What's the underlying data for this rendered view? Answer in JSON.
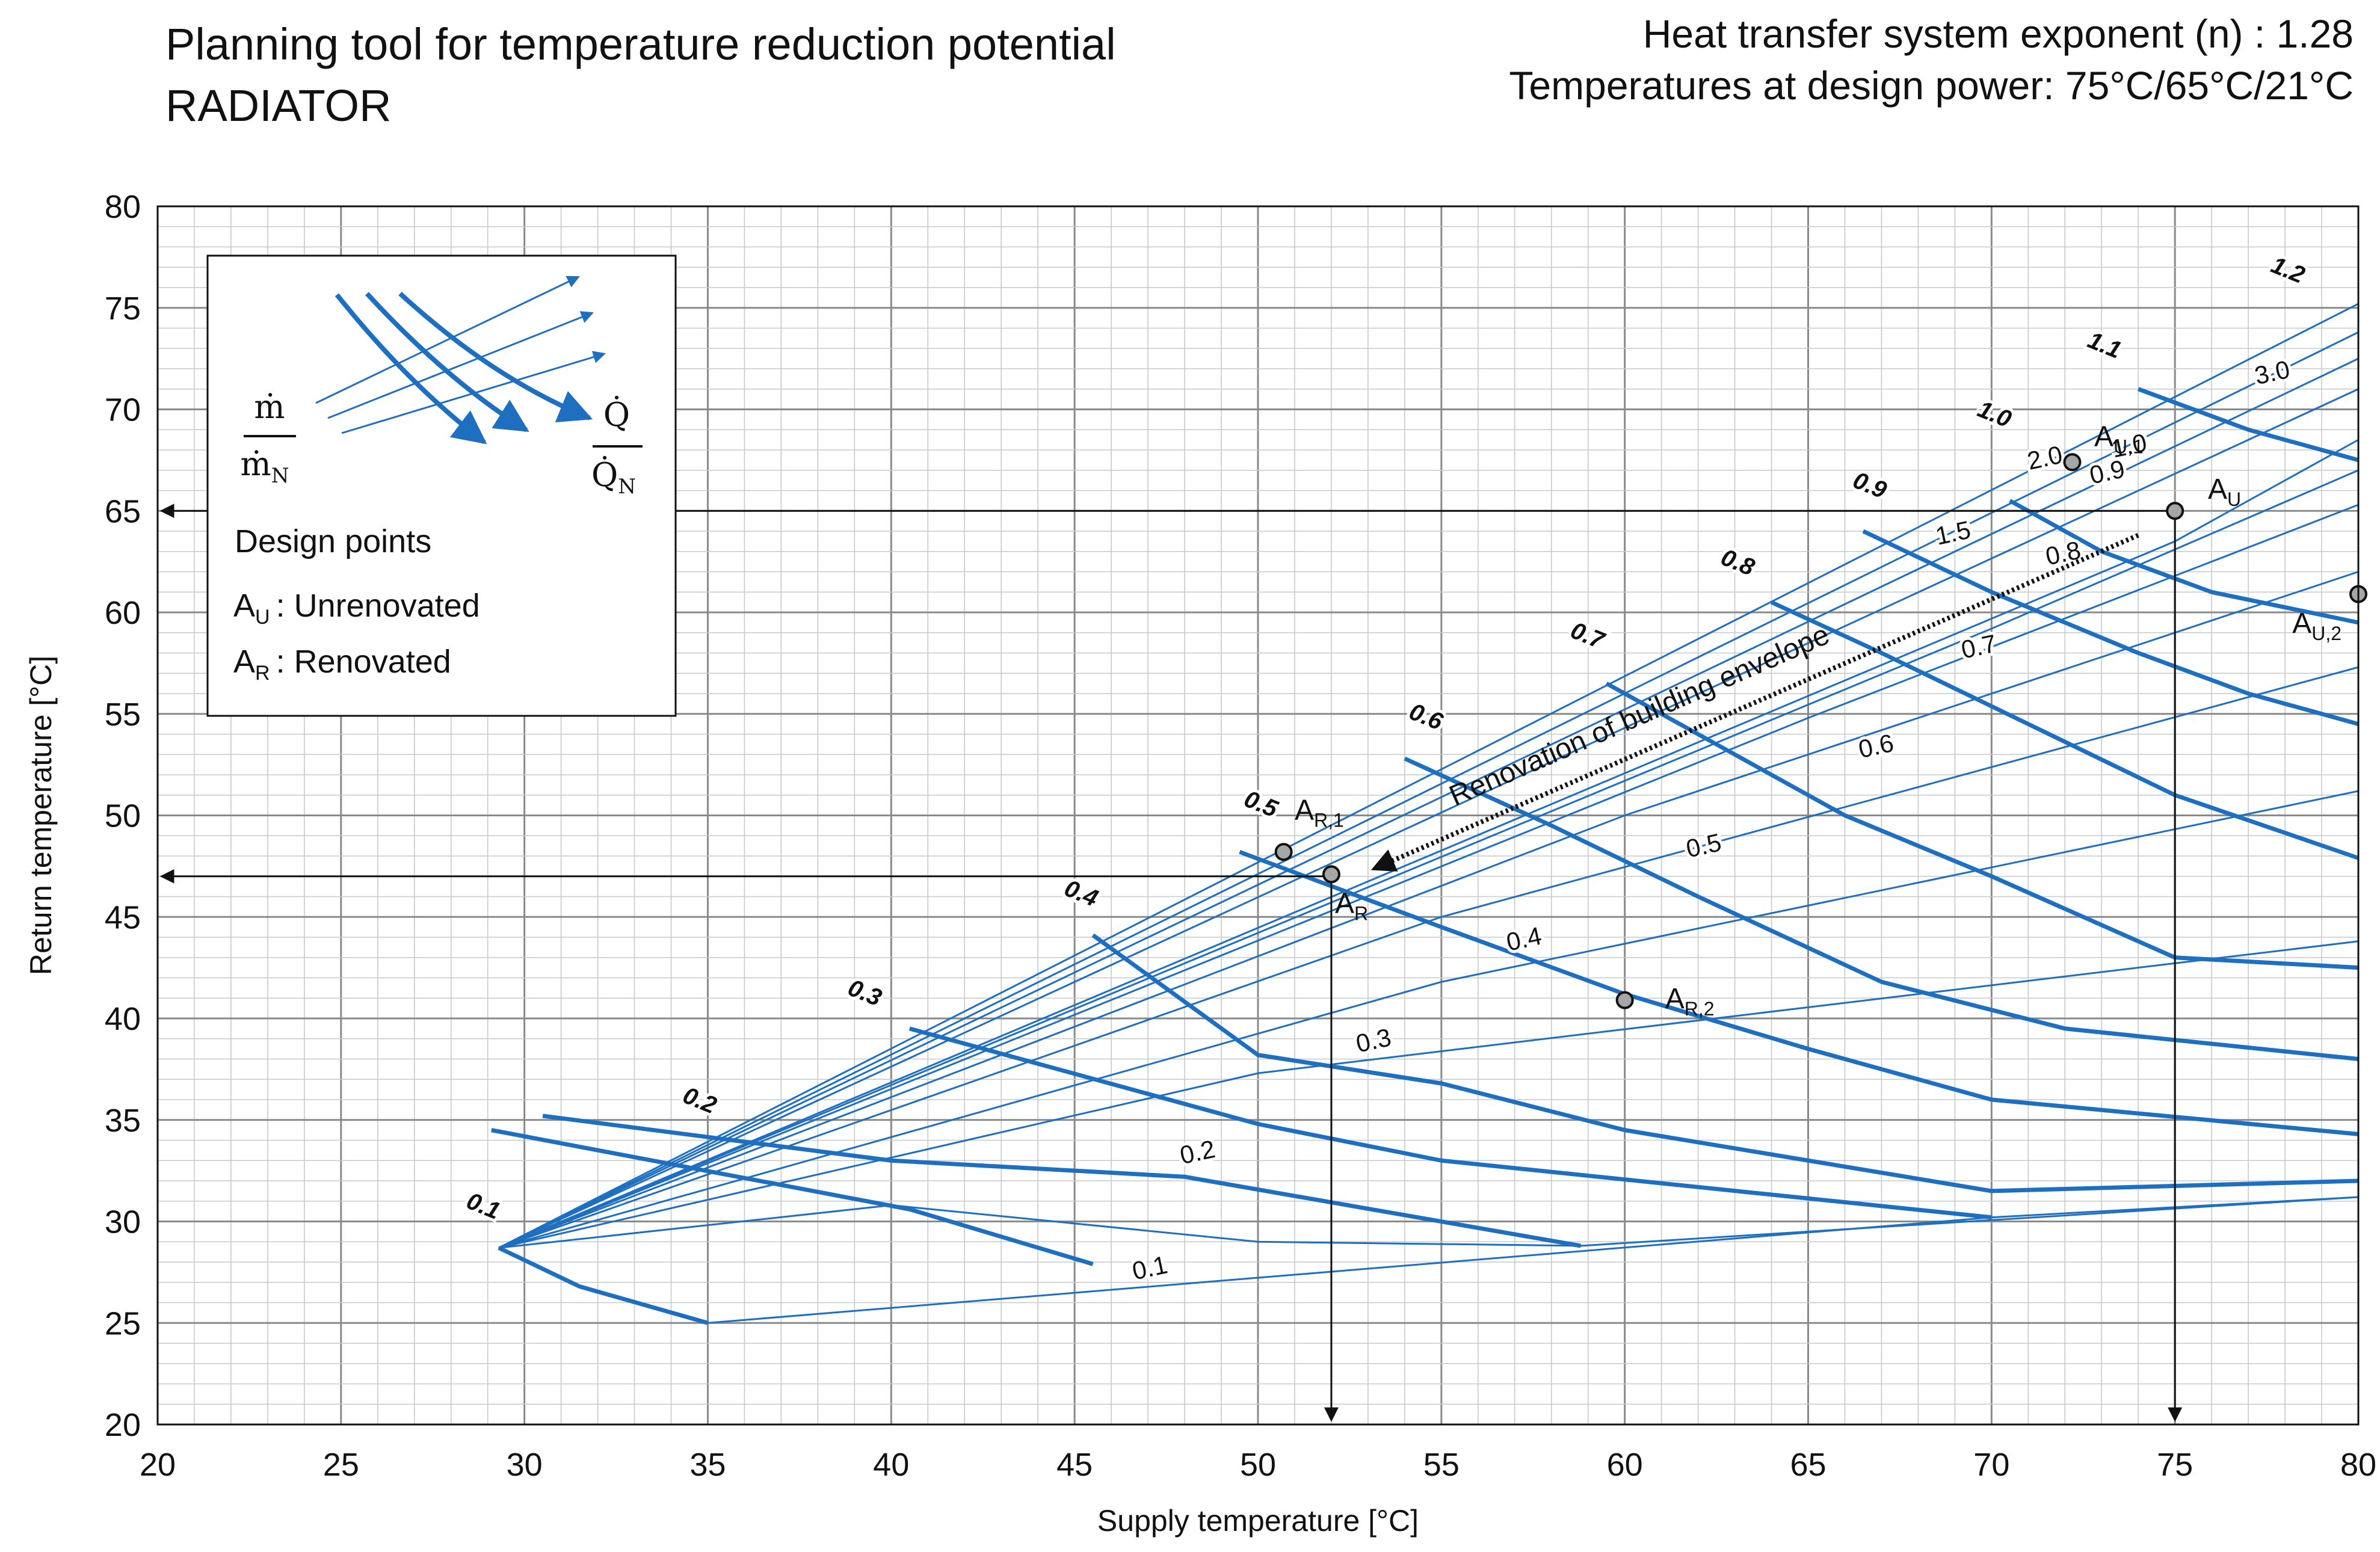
{
  "header": {
    "title_line1": "Planning tool for temperature reduction potential",
    "title_line2": "RADIATOR",
    "param_line1": "Heat transfer system exponent (n) : 1.28",
    "param_line2": "Temperatures at design power: 75°C/65°C/21°C"
  },
  "legend": {
    "mass_flow_numerator": "ṁ",
    "mass_flow_denominator": "ṁ",
    "mass_flow_denominator_sub": "N",
    "heat_numerator": "Q̇",
    "heat_denominator": "Q̇",
    "heat_denominator_sub": "N",
    "design_points_title": "Design points",
    "unrenovated_symbol": "A",
    "unrenovated_sub": "U",
    "unrenovated_text": ": Unrenovated",
    "renovated_symbol": "A",
    "renovated_sub": "R",
    "renovated_text": ": Renovated"
  },
  "colors": {
    "curve": "#1f6fc1",
    "grid_major": "#8a8a8a",
    "grid_minor": "#c9c9c9",
    "ink": "#111111",
    "point_fill": "#a6a6a6"
  },
  "chart_data": {
    "type": "line",
    "title": "Planning tool for temperature reduction potential RADIATOR",
    "xlabel": "Supply temperature [°C]",
    "ylabel": "Return temperature [°C]",
    "xlim": [
      20,
      80
    ],
    "ylim": [
      20,
      80
    ],
    "xticks": [
      20,
      25,
      30,
      35,
      40,
      45,
      50,
      55,
      60,
      65,
      70,
      75,
      80
    ],
    "yticks": [
      20,
      25,
      30,
      35,
      40,
      45,
      50,
      55,
      60,
      65,
      70,
      75,
      80
    ],
    "grid": true,
    "mass_flow_ratio_lines": [
      {
        "label": "0.1",
        "x": [
          29.3,
          31.5,
          35,
          70,
          80
        ],
        "y": [
          28.7,
          26.8,
          25.0,
          30.2,
          31.2
        ]
      },
      {
        "label": "0.2",
        "x": [
          29.3,
          40,
          50,
          58.8,
          80
        ],
        "y": [
          28.7,
          30.8,
          29.0,
          28.8,
          31.2
        ]
      },
      {
        "label": "0.3",
        "x": [
          29.3,
          50,
          80
        ],
        "y": [
          28.7,
          37.3,
          43.8
        ]
      },
      {
        "label": "0.4",
        "x": [
          29.3,
          55,
          80
        ],
        "y": [
          28.7,
          41.8,
          51.2
        ]
      },
      {
        "label": "0.5",
        "x": [
          29.3,
          55,
          80
        ],
        "y": [
          28.7,
          45.0,
          57.3
        ]
      },
      {
        "label": "0.6",
        "x": [
          29.3,
          60,
          80
        ],
        "y": [
          28.7,
          50.0,
          62.0
        ]
      },
      {
        "label": "0.7",
        "x": [
          29.3,
          65,
          80
        ],
        "y": [
          28.7,
          54.8,
          65.3
        ]
      },
      {
        "label": "0.8",
        "x": [
          29.3,
          70,
          80
        ],
        "y": [
          28.7,
          59.2,
          67.0
        ]
      },
      {
        "label": "0.9",
        "x": [
          29.3,
          75,
          80
        ],
        "y": [
          28.7,
          63.5,
          68.5
        ]
      },
      {
        "label": "1.0",
        "x": [
          29.3,
          80
        ],
        "y": [
          28.7,
          71.0
        ]
      },
      {
        "label": "1.5",
        "x": [
          29.3,
          80
        ],
        "y": [
          28.7,
          72.5
        ]
      },
      {
        "label": "2.0",
        "x": [
          29.3,
          80
        ],
        "y": [
          28.7,
          73.8
        ]
      },
      {
        "label": "3.0",
        "x": [
          29.3,
          80
        ],
        "y": [
          28.7,
          75.2
        ]
      }
    ],
    "heat_ratio_curves": [
      {
        "label": "0.1",
        "x": [
          29.3,
          31.5,
          35
        ],
        "y": [
          28.7,
          26.8,
          25.0
        ]
      },
      {
        "label": "0.2",
        "x": [
          29.1,
          40.5,
          45.5
        ],
        "y": [
          34.5,
          30.6,
          27.9
        ]
      },
      {
        "label": "0.3",
        "x": [
          30.5,
          40,
          48,
          58.8
        ],
        "y": [
          35.2,
          33.0,
          32.2,
          28.8
        ]
      },
      {
        "label": "0.4",
        "x": [
          40.5,
          50,
          55,
          70
        ],
        "y": [
          39.5,
          34.8,
          33.0,
          30.2
        ]
      },
      {
        "label": "0.5",
        "x": [
          45.5,
          50,
          55,
          60,
          65,
          70,
          80
        ],
        "y": [
          44.1,
          38.2,
          36.8,
          34.5,
          33.0,
          31.5,
          32.0
        ]
      },
      {
        "label": "0.6",
        "x": [
          49.5,
          55,
          60,
          65,
          70,
          80
        ],
        "y": [
          48.2,
          44.5,
          41.2,
          38.5,
          36.0,
          34.3
        ]
      },
      {
        "label": "0.7",
        "x": [
          54.0,
          58,
          62,
          67,
          72,
          80
        ],
        "y": [
          52.8,
          49.5,
          46.0,
          41.8,
          39.5,
          38.0
        ]
      },
      {
        "label": "0.8",
        "x": [
          59.5,
          62,
          66,
          70,
          75,
          80
        ],
        "y": [
          56.5,
          54.0,
          50.0,
          47.0,
          43.0,
          42.5
        ]
      },
      {
        "label": "0.9",
        "x": [
          64.0,
          67,
          71,
          75,
          80
        ],
        "y": [
          60.5,
          58.0,
          54.5,
          51.0,
          47.9
        ]
      },
      {
        "label": "1.0",
        "x": [
          66.5,
          70,
          74,
          77,
          80
        ],
        "y": [
          64.0,
          61.0,
          58.0,
          56.0,
          54.5
        ]
      },
      {
        "label": "1.1",
        "x": [
          70.5,
          73,
          76,
          80
        ],
        "y": [
          65.5,
          63.0,
          61.0,
          59.5
        ]
      },
      {
        "label": "1.2",
        "x": [
          74.0,
          77,
          80
        ],
        "y": [
          71.0,
          69.0,
          67.5
        ]
      }
    ],
    "mass_flow_labels": [
      {
        "text": "0.1",
        "x": 28.8,
        "y": 30.4
      },
      {
        "text": "0.2",
        "x": 34.7,
        "y": 35.6
      },
      {
        "text": "0.3",
        "x": 39.2,
        "y": 40.9
      },
      {
        "text": "0.4",
        "x": 45.1,
        "y": 45.8
      },
      {
        "text": "0.5",
        "x": 50.0,
        "y": 50.2
      },
      {
        "text": "0.6",
        "x": 54.5,
        "y": 54.5
      },
      {
        "text": "0.7",
        "x": 58.9,
        "y": 58.5
      },
      {
        "text": "0.8",
        "x": 63.0,
        "y": 62.1
      },
      {
        "text": "0.9",
        "x": 66.6,
        "y": 65.9
      },
      {
        "text": "1.0",
        "x": 70.0,
        "y": 69.4
      },
      {
        "text": "1.1",
        "x": 73.0,
        "y": 72.8
      },
      {
        "text": "1.2",
        "x": 78.0,
        "y": 76.5
      }
    ],
    "heat_ratio_labels": [
      {
        "text": "0.1",
        "x": 47.1,
        "y": 27.3
      },
      {
        "text": "0.2",
        "x": 48.4,
        "y": 33.0
      },
      {
        "text": "0.3",
        "x": 53.2,
        "y": 38.5
      },
      {
        "text": "0.4",
        "x": 57.3,
        "y": 43.5
      },
      {
        "text": "0.5",
        "x": 62.2,
        "y": 48.1
      },
      {
        "text": "0.6",
        "x": 66.9,
        "y": 53.0
      },
      {
        "text": "0.7",
        "x": 69.7,
        "y": 57.9
      },
      {
        "text": "0.8",
        "x": 72.0,
        "y": 62.5
      },
      {
        "text": "0.9",
        "x": 73.2,
        "y": 66.5
      },
      {
        "text": "1.0",
        "x": 73.8,
        "y": 67.8
      },
      {
        "text": "1.5",
        "x": 69.0,
        "y": 63.5
      },
      {
        "text": "2.0",
        "x": 71.5,
        "y": 67.2
      },
      {
        "text": "3.0",
        "x": 77.7,
        "y": 71.4
      }
    ],
    "design_points": [
      {
        "id": "A_U",
        "label": "A",
        "sub": "U",
        "x": 75.0,
        "y": 65.0
      },
      {
        "id": "A_U1",
        "label": "A",
        "sub": "U,1",
        "x": 72.2,
        "y": 67.4
      },
      {
        "id": "A_U2",
        "label": "A",
        "sub": "U,2",
        "x": 80.0,
        "y": 60.9
      },
      {
        "id": "A_R",
        "label": "A",
        "sub": "R",
        "x": 52.0,
        "y": 47.1
      },
      {
        "id": "A_R1",
        "label": "A",
        "sub": "R,1",
        "x": 50.7,
        "y": 48.2
      },
      {
        "id": "A_R2",
        "label": "A",
        "sub": "R,2",
        "x": 60.0,
        "y": 40.9
      }
    ],
    "annotation": {
      "text": "Renovation of building envelope",
      "from": [
        74.0,
        63.8
      ],
      "to": [
        53.2,
        47.4
      ]
    },
    "guide_lines": [
      {
        "from": [
          75,
          65
        ],
        "to": [
          20.1,
          65
        ],
        "direction": "to-y-axis"
      },
      {
        "from": [
          75,
          65
        ],
        "to": [
          75,
          20.2
        ],
        "direction": "to-x-axis"
      },
      {
        "from": [
          52,
          47
        ],
        "to": [
          20.1,
          47
        ],
        "direction": "to-y-axis"
      },
      {
        "from": [
          52,
          47
        ],
        "to": [
          52,
          20.2
        ],
        "direction": "to-x-axis"
      }
    ]
  }
}
